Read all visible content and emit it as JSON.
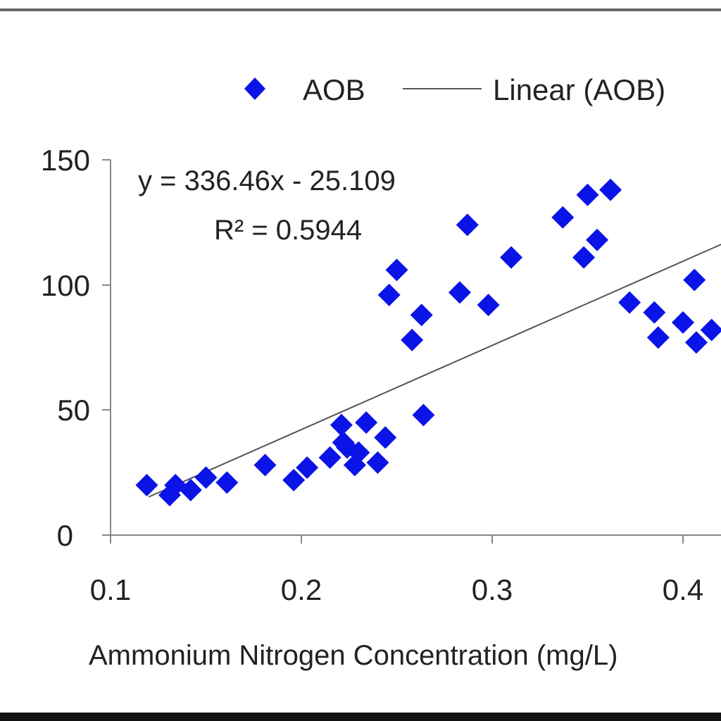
{
  "chart_data": {
    "type": "scatter",
    "xlabel": "Ammonium Nitrogen Concentration  (mg/L)",
    "ylabel": "",
    "xlim": [
      0.1,
      0.43
    ],
    "ylim": [
      0,
      150
    ],
    "x_ticks": [
      "0.1",
      "0.2",
      "0.3",
      "0.4"
    ],
    "y_ticks": [
      "0",
      "50",
      "100",
      "150"
    ],
    "grid": false,
    "legend": {
      "placement": "top-right",
      "entries": [
        "AOB",
        "Linear (AOB)"
      ]
    },
    "colors": {
      "points": "#0a14e6",
      "trendline": "#555555",
      "axis": "#888888"
    },
    "series": [
      {
        "name": "AOB",
        "marker": "diamond",
        "x": [
          0.119,
          0.131,
          0.134,
          0.142,
          0.15,
          0.161,
          0.181,
          0.196,
          0.203,
          0.215,
          0.221,
          0.222,
          0.224,
          0.228,
          0.23,
          0.234,
          0.24,
          0.244,
          0.246,
          0.25,
          0.258,
          0.263,
          0.264,
          0.283,
          0.287,
          0.298,
          0.31,
          0.337,
          0.348,
          0.35,
          0.355,
          0.362,
          0.372,
          0.385,
          0.387,
          0.4,
          0.406,
          0.407,
          0.415
        ],
        "y": [
          20,
          16,
          20,
          18,
          23,
          21,
          28,
          22,
          27,
          31,
          44,
          37,
          35,
          28,
          33,
          45,
          29,
          39,
          96,
          106,
          78,
          88,
          48,
          97,
          124,
          92,
          111,
          127,
          111,
          136,
          118,
          138,
          93,
          89,
          79,
          85,
          102,
          77,
          82
        ]
      }
    ],
    "trendline": {
      "name": "Linear (AOB)",
      "slope": 336.46,
      "intercept": -25.109,
      "x_range": [
        0.12,
        0.43
      ],
      "equation": "y = 336.46x - 25.109",
      "r2_label": "R² = 0.5944"
    }
  }
}
